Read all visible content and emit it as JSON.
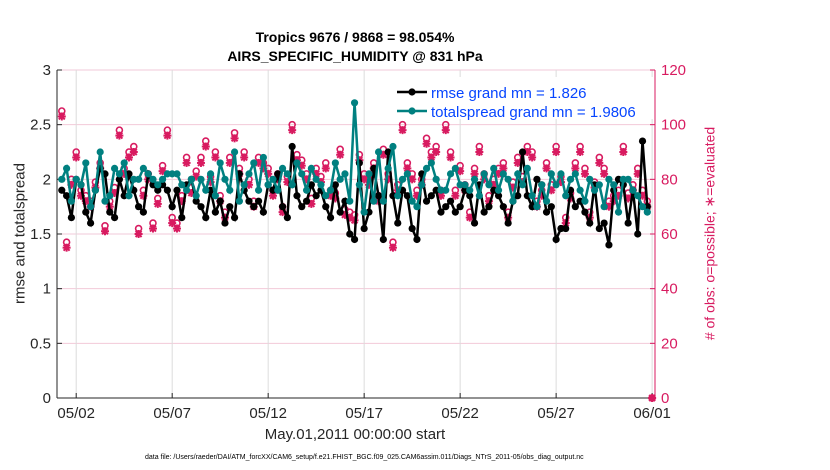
{
  "chart_data": {
    "type": "line",
    "title": "Tropics 9676 / 9868 = 98.054%",
    "subtitle": "AIRS_SPECIFIC_HUMIDITY @ 831 hPa",
    "xlabel": "May.01,2011 00:00:00 start",
    "ylabel": "rmse and totalspread",
    "ylabel_right": "# of obs: o=possible; ∗=evaluated",
    "footer": "data file: /Users/raeder/DAI/ATM_forcXX/CAM6_setup/f.e21.FHIST_BGC.f09_025.CAM6assim.011/Diags_NTrS_2011-05/obs_diag_output.nc",
    "x_start": "05/01 06:00",
    "x_step_hours": 6,
    "xticks": [
      "05/02",
      "05/07",
      "05/12",
      "05/17",
      "05/22",
      "05/27",
      "06/01"
    ],
    "xtick_days": [
      2,
      7,
      12,
      17,
      22,
      27,
      32
    ],
    "xlim_days": [
      1,
      32.15
    ],
    "ylim": [
      0,
      3
    ],
    "yticks": [
      "0",
      "0.5",
      "1",
      "1.5",
      "2",
      "2.5",
      "3"
    ],
    "ylim_right": [
      0,
      120
    ],
    "yticks_right": [
      "0",
      "20",
      "40",
      "60",
      "80",
      "100",
      "120"
    ],
    "grid": true,
    "legend_position": "top-right",
    "colors": {
      "rmse": "#000000",
      "totalspread": "#008080",
      "obs": "#d81b60",
      "legend_text": "#0645ff",
      "right_axis": "#d81b60"
    },
    "series": [
      {
        "name": "rmse grand mn = 1.826",
        "values": [
          1.9,
          1.85,
          1.65,
          2.0,
          1.95,
          1.7,
          1.6,
          1.9,
          2.1,
          2.05,
          1.7,
          1.65,
          2.0,
          1.85,
          2.05,
          1.9,
          1.75,
          1.7,
          2.05,
          1.95,
          1.9,
          1.95,
          1.9,
          1.75,
          1.9,
          1.65,
          1.95,
          2.0,
          1.8,
          1.75,
          1.65,
          1.9,
          1.7,
          1.8,
          1.6,
          1.75,
          1.65,
          2.05,
          1.9,
          1.8,
          1.75,
          1.8,
          1.7,
          1.95,
          1.9,
          2.05,
          1.75,
          1.65,
          2.3,
          1.85,
          1.75,
          1.8,
          1.95,
          1.85,
          1.9,
          1.75,
          1.65,
          1.95,
          1.7,
          1.8,
          1.5,
          1.45,
          2.15,
          1.55,
          1.7,
          2.1,
          1.85,
          1.45,
          2.25,
          1.85,
          1.6,
          1.9,
          1.85,
          1.55,
          1.45,
          2.05,
          1.8,
          1.85,
          1.9,
          1.7,
          1.75,
          1.8,
          1.7,
          1.75,
          1.9,
          1.85,
          1.6,
          1.95,
          1.7,
          1.75,
          1.9,
          1.85,
          1.75,
          1.6,
          1.8,
          1.85,
          2.25,
          1.85,
          1.75,
          2.0,
          1.95,
          1.7,
          1.75,
          1.45,
          1.55,
          1.55,
          1.9,
          1.75,
          1.8,
          1.7,
          1.6,
          1.95,
          1.55,
          1.6,
          1.4,
          1.9,
          2.0,
          1.95,
          1.6,
          1.9,
          1.5,
          2.35,
          1.75,
          null
        ]
      },
      {
        "name": "totalspread grand mn = 1.9806",
        "values": [
          2.0,
          2.1,
          1.8,
          2.0,
          1.95,
          2.15,
          1.75,
          1.9,
          2.25,
          1.8,
          1.85,
          2.1,
          2.05,
          2.15,
          1.85,
          2.0,
          2.0,
          2.1,
          2.05,
          2.0,
          1.95,
          2.0,
          2.05,
          2.05,
          2.05,
          1.95,
          1.9,
          2.0,
          1.85,
          2.0,
          1.9,
          2.05,
          1.85,
          2.15,
          2.0,
          1.9,
          2.25,
          1.8,
          1.95,
          2.05,
          2.15,
          1.9,
          2.2,
          1.95,
          2.0,
          1.9,
          2.1,
          2.05,
          1.95,
          2.15,
          2.05,
          1.9,
          2.1,
          2.0,
          1.95,
          1.85,
          1.9,
          2.15,
          2.0,
          2.05,
          1.8,
          2.7,
          1.95,
          1.7,
          2.05,
          1.8,
          2.25,
          1.8,
          2.1,
          2.3,
          1.85,
          2.0,
          2.05,
          1.8,
          1.75,
          1.95,
          2.1,
          2.15,
          2.0,
          1.9,
          1.9,
          2.05,
          2.1,
          1.95,
          1.95,
          1.9,
          2.0,
          1.85,
          2.05,
          1.95,
          2.1,
          1.9,
          2.05,
          2.0,
          1.8,
          2.05,
          1.95,
          2.1,
          1.85,
          1.75,
          1.95,
          1.8,
          2.05,
          1.95,
          2.05,
          1.85,
          2.0,
          2.05,
          1.9,
          1.8,
          2.0,
          1.9,
          1.95,
          1.75,
          2.0,
          1.95,
          1.7,
          2.0,
          2.0,
          1.9,
          1.85,
          1.75,
          1.7,
          null
        ]
      },
      {
        "name": "possible",
        "axis": "right",
        "values": [
          105,
          57,
          80,
          90,
          76,
          74,
          72,
          79,
          86,
          63,
          72,
          77,
          98,
          84,
          90,
          92,
          62,
          76,
          82,
          64,
          73,
          85,
          98,
          66,
          64,
          74,
          88,
          77,
          83,
          88,
          94,
          81,
          90,
          74,
          68,
          88,
          97,
          84,
          90,
          80,
          72,
          88,
          86,
          84,
          76,
          82,
          70,
          81,
          100,
          89,
          87,
          82,
          73,
          84,
          81,
          86,
          76,
          75,
          91,
          69,
          68,
          67,
          89,
          82,
          80,
          86,
          74,
          91,
          82,
          57,
          78,
          100,
          86,
          82,
          76,
          80,
          95,
          90,
          92,
          76,
          100,
          90,
          76,
          85,
          78,
          68,
          84,
          92,
          82,
          74,
          80,
          84,
          86,
          68,
          79,
          88,
          81,
          92,
          90,
          72,
          76,
          86,
          78,
          92,
          81,
          66,
          75,
          86,
          92,
          84,
          68,
          79,
          88,
          84,
          72,
          74,
          76,
          92,
          75,
          78,
          84,
          76,
          72,
          0
        ]
      },
      {
        "name": "evaluated",
        "axis": "right",
        "values": [
          103,
          55,
          78,
          88,
          74,
          72,
          70,
          77,
          84,
          61,
          70,
          75,
          96,
          82,
          88,
          90,
          60,
          74,
          80,
          62,
          71,
          83,
          96,
          64,
          62,
          72,
          86,
          75,
          81,
          86,
          92,
          79,
          88,
          72,
          66,
          86,
          95,
          82,
          88,
          78,
          70,
          86,
          84,
          82,
          74,
          80,
          68,
          79,
          98,
          87,
          85,
          80,
          71,
          82,
          79,
          84,
          74,
          73,
          89,
          67,
          66,
          65,
          87,
          80,
          78,
          84,
          72,
          89,
          80,
          55,
          76,
          98,
          84,
          80,
          74,
          78,
          93,
          88,
          90,
          74,
          98,
          88,
          74,
          83,
          76,
          66,
          82,
          90,
          80,
          72,
          78,
          82,
          84,
          66,
          77,
          86,
          79,
          90,
          88,
          70,
          74,
          84,
          76,
          90,
          79,
          64,
          73,
          84,
          90,
          82,
          66,
          77,
          86,
          82,
          70,
          72,
          74,
          90,
          73,
          76,
          82,
          74,
          70,
          0
        ]
      }
    ]
  }
}
